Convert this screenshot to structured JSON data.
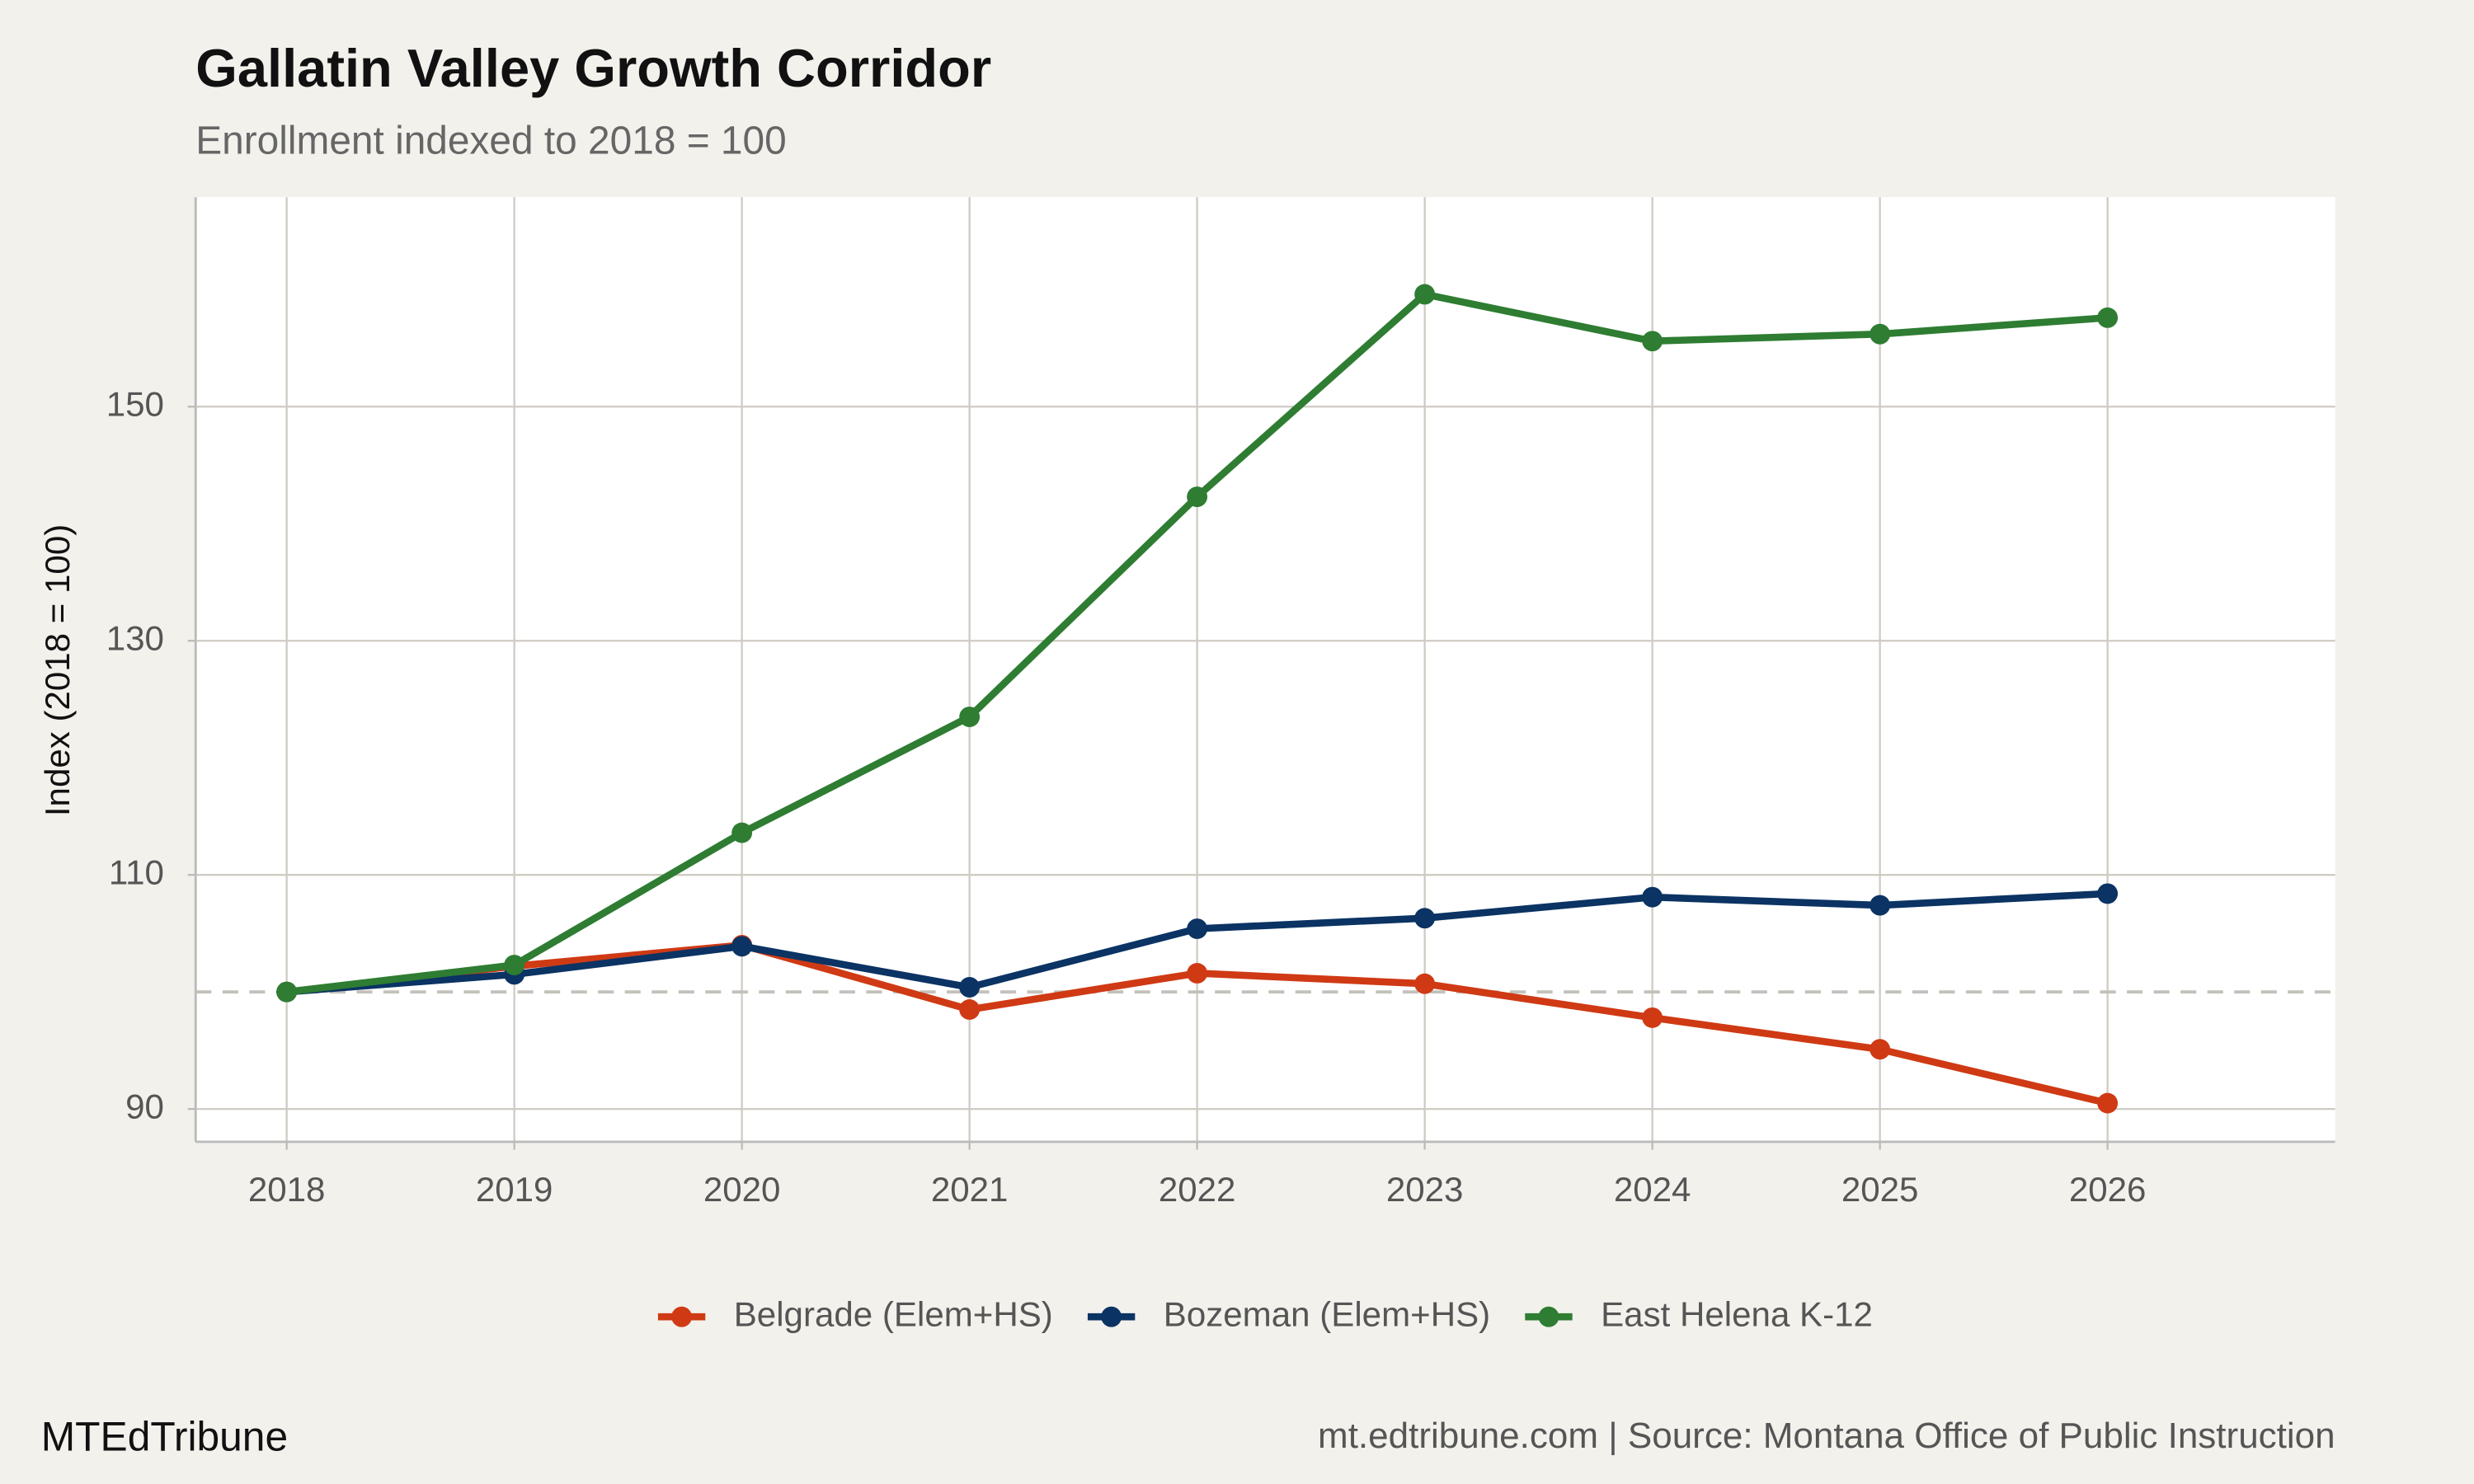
{
  "chart_data": {
    "type": "line",
    "title": "Gallatin Valley Growth Corridor",
    "subtitle": "Enrollment indexed to 2018 = 100",
    "y_label": "Index (2018 = 100)",
    "x": [
      2018,
      2019,
      2020,
      2021,
      2022,
      2023,
      2024,
      2025,
      2026
    ],
    "xlim": [
      2017.6,
      2027
    ],
    "xticks": [
      2018,
      2019,
      2020,
      2021,
      2022,
      2023,
      2024,
      2025,
      2026
    ],
    "ylim": [
      87.2,
      167.9
    ],
    "yticks": [
      90,
      110,
      130,
      150
    ],
    "grid": true,
    "reference_line": 100,
    "legend": "bottom",
    "series": [
      {
        "name": "Belgrade (Elem+HS)",
        "color": "#cf3a14",
        "values": [
          100,
          102.2,
          104.0,
          98.5,
          101.6,
          100.7,
          97.8,
          95.1,
          90.5
        ]
      },
      {
        "name": "Bozeman (Elem+HS)",
        "color": "#0b3363",
        "values": [
          100,
          101.5,
          103.9,
          100.4,
          105.4,
          106.3,
          108.1,
          107.4,
          108.4
        ]
      },
      {
        "name": "East Helena K-12",
        "color": "#2e7d32",
        "values": [
          100,
          102.3,
          113.6,
          123.5,
          142.3,
          159.6,
          155.6,
          156.2,
          157.6
        ]
      }
    ],
    "footer_left": "MTEdTribune",
    "footer_right": "mt.edtribune.com | Source: Montana Office of Public Instruction"
  }
}
